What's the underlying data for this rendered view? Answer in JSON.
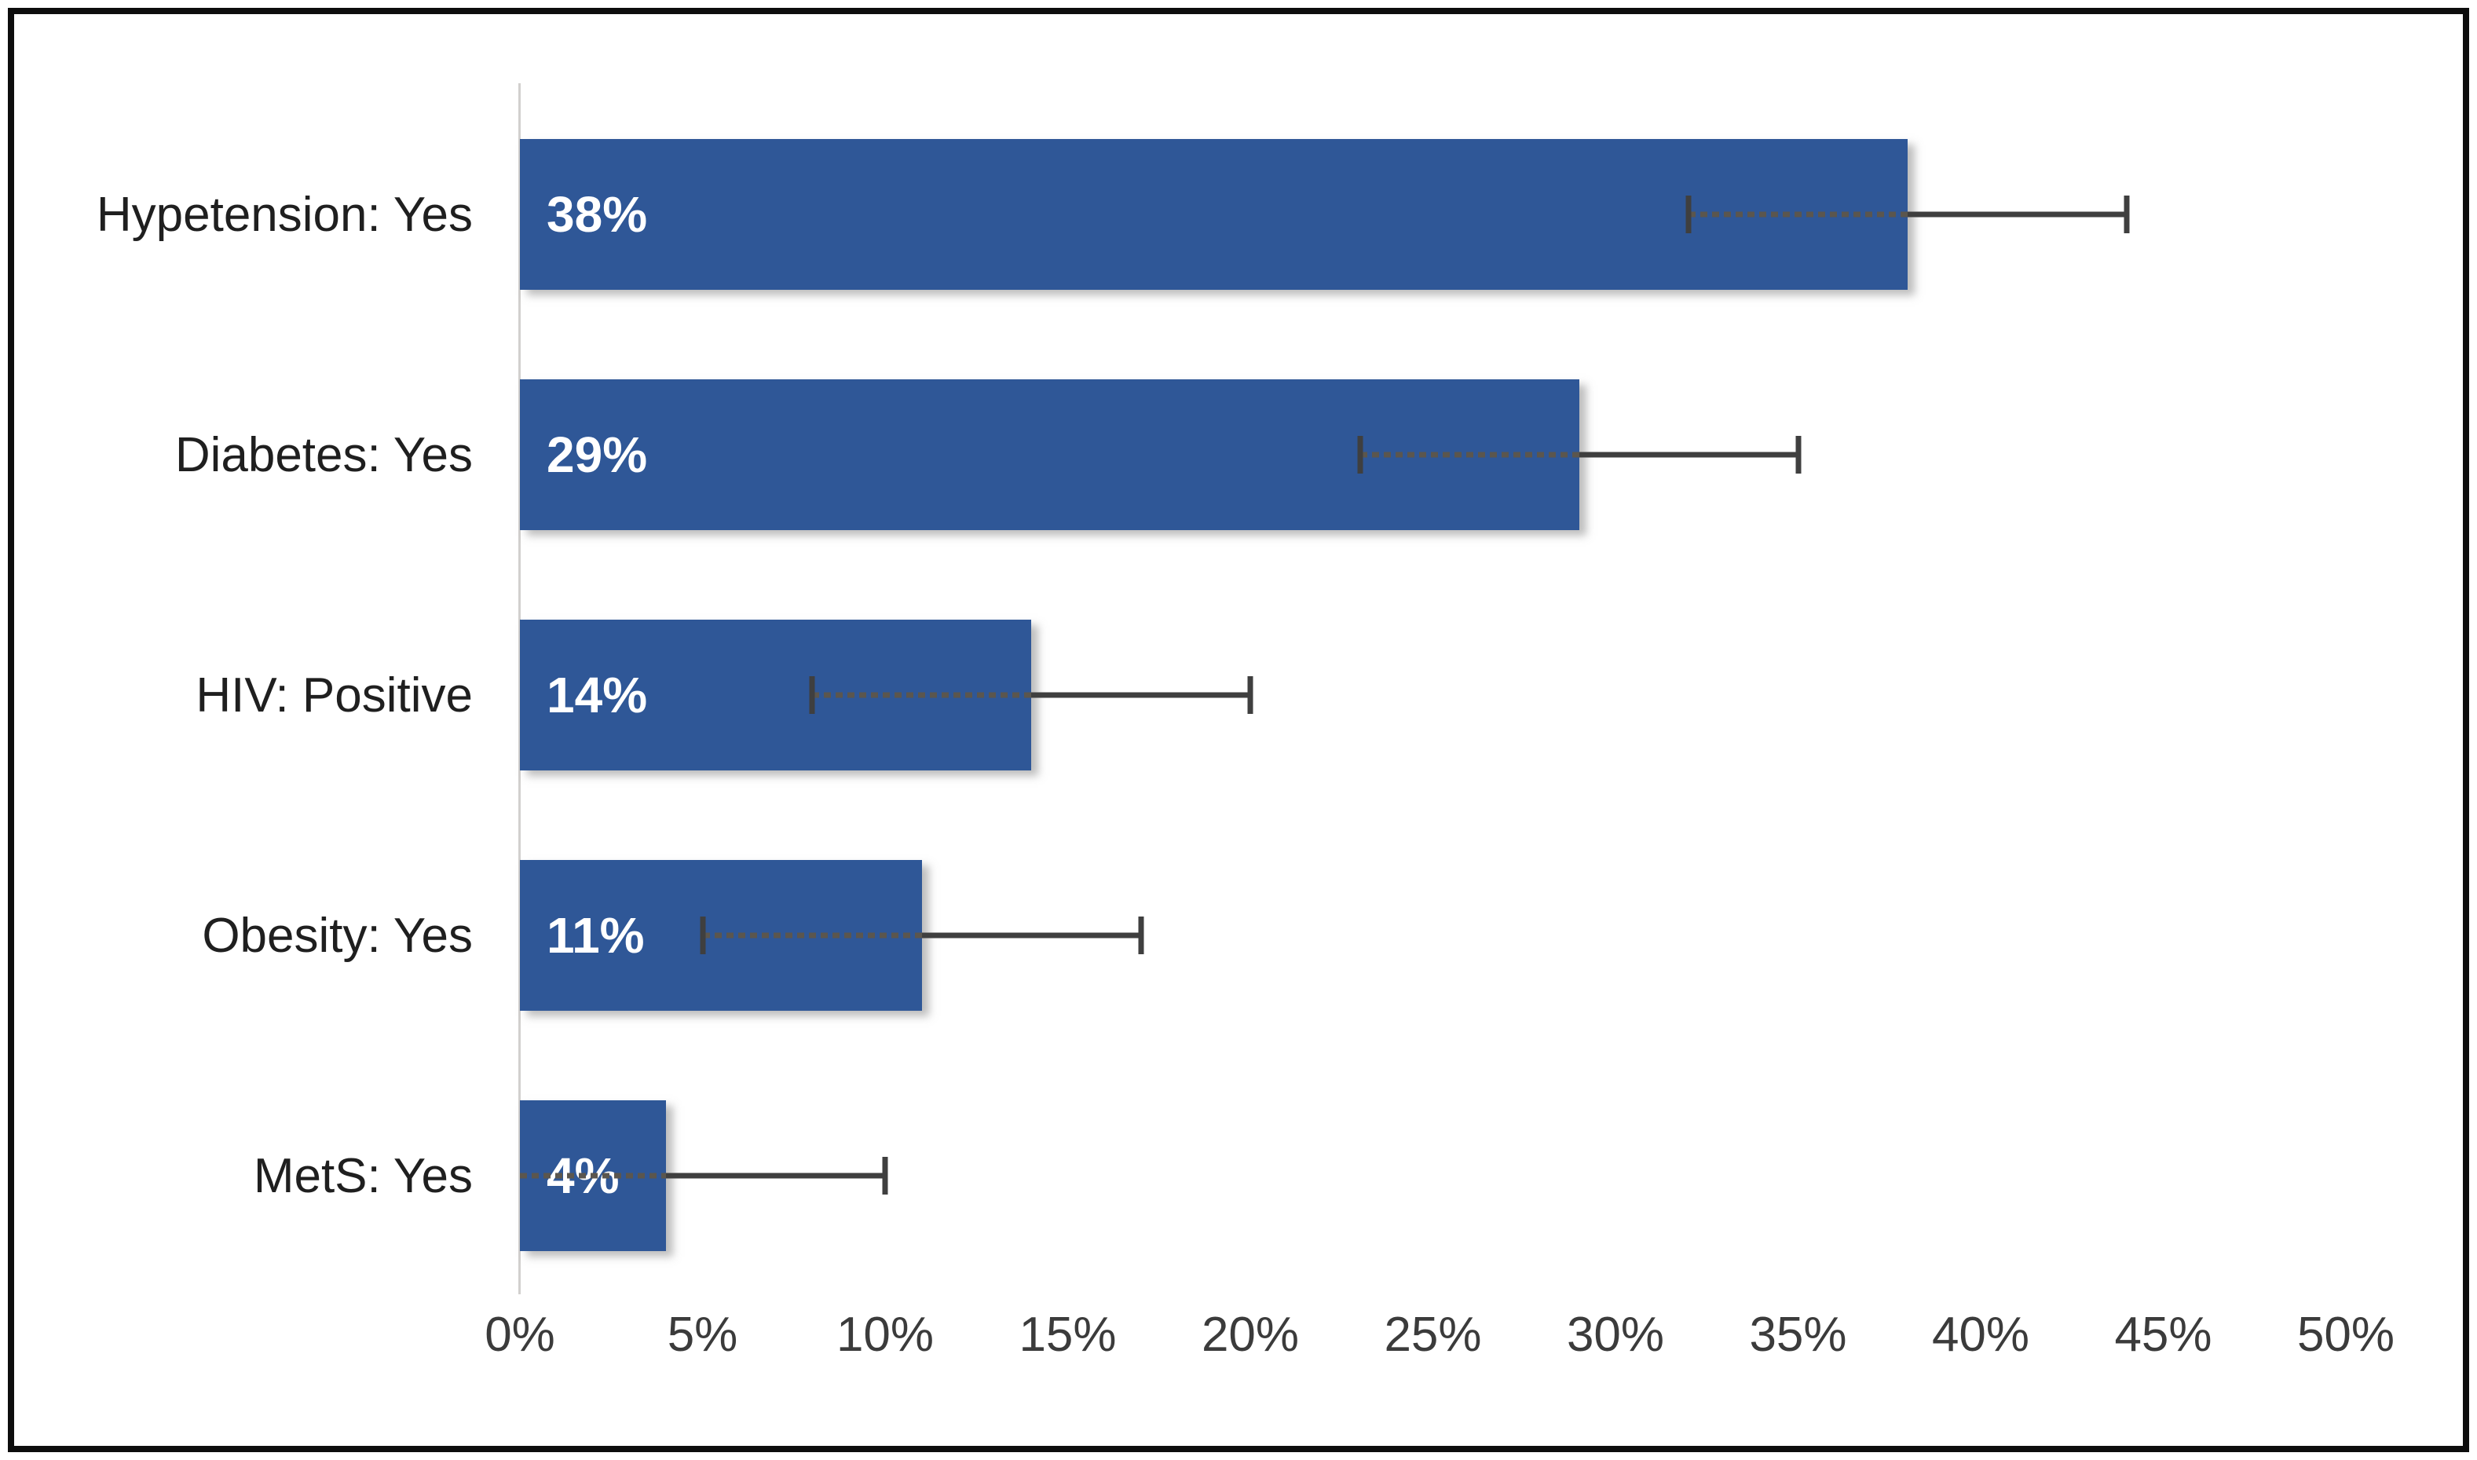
{
  "chart_data": {
    "type": "bar",
    "orientation": "horizontal",
    "title": "",
    "xlabel": "",
    "ylabel": "",
    "grid": false,
    "legend": false,
    "xlim": [
      0,
      50
    ],
    "categories": [
      "Hypetension: Yes",
      "Diabetes: Yes",
      "HIV: Positive",
      "Obesity: Yes",
      "MetS: Yes"
    ],
    "values": [
      38,
      29,
      14,
      11,
      4
    ],
    "value_labels": [
      "38%",
      "29%",
      "14%",
      "11%",
      "4%"
    ],
    "error_low": [
      32,
      23,
      8,
      5,
      0
    ],
    "error_high": [
      44,
      35,
      20,
      17,
      10
    ],
    "error_cap_left_visible": [
      true,
      true,
      true,
      true,
      false
    ],
    "x_tick_values": [
      0,
      5,
      10,
      15,
      20,
      25,
      30,
      35,
      40,
      45,
      50
    ],
    "x_ticks": [
      "0%",
      "5%",
      "10%",
      "15%",
      "20%",
      "25%",
      "30%",
      "35%",
      "40%",
      "45%",
      "50%"
    ],
    "colors": {
      "bar": "#2F5797",
      "value_label": "#FFFFFF",
      "error_line": "#3F3F3F",
      "error_line_inner": "#5B564E",
      "axis_line": "#D2D0CE",
      "tick_text": "#3B3B3B",
      "category_text": "#1F1F1F",
      "border": "#0D0D0D",
      "background": "#FFFFFF"
    }
  }
}
